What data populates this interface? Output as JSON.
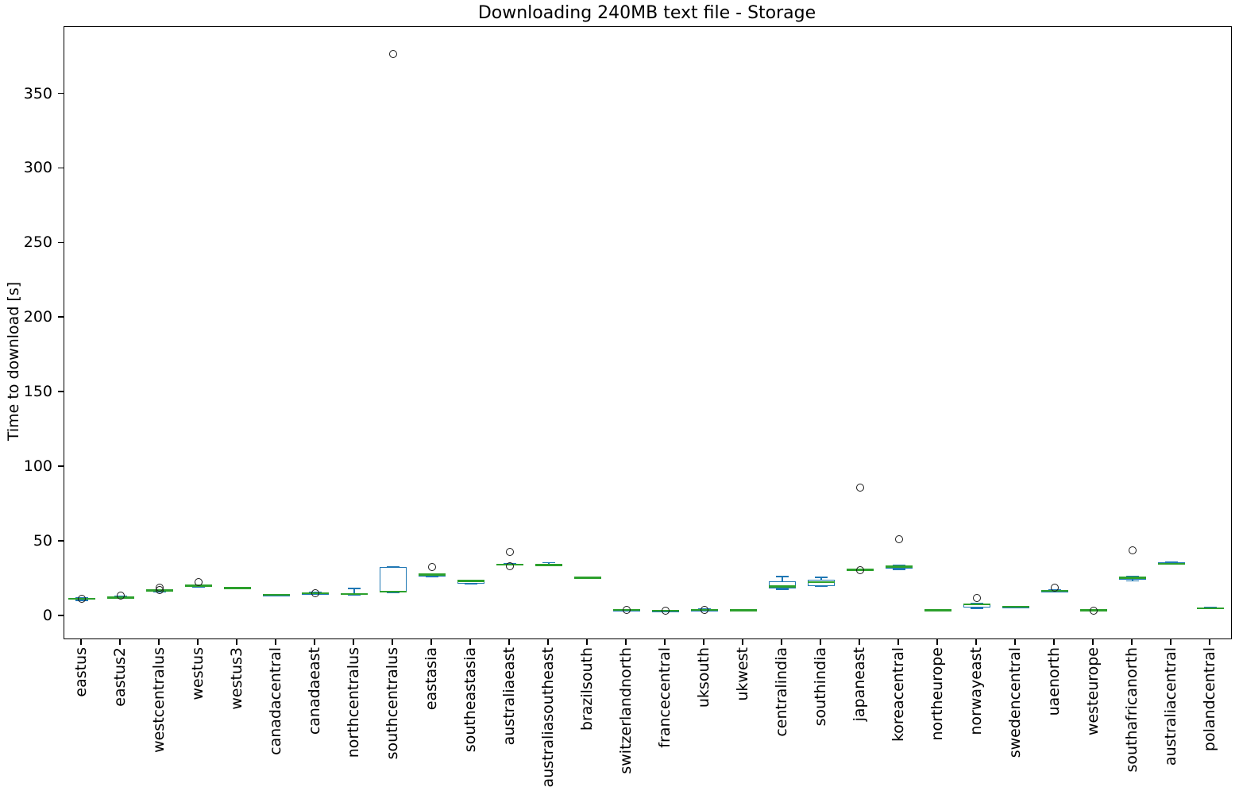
{
  "figure": {
    "title": "Downloading 240MB text file - Storage"
  },
  "chart_data": {
    "type": "box",
    "title": "Downloading 240MB text file - Storage",
    "xlabel": "",
    "ylabel": "Time to download [s]",
    "ylim": [
      -15,
      395
    ],
    "yticks": [
      0,
      50,
      100,
      150,
      200,
      250,
      300,
      350
    ],
    "grid": false,
    "legend": "none",
    "colors": {
      "box_edge": "#1f77b4",
      "median": "#2ca02c",
      "flier_edge": "#1a1a1a",
      "axis": "#000000",
      "background": "#ffffff"
    },
    "categories": [
      "eastus",
      "eastus2",
      "westcentralus",
      "westus",
      "westus3",
      "canadacentral",
      "canadaeast",
      "northcentralus",
      "southcentralus",
      "eastasia",
      "southeastasia",
      "australiaeast",
      "australiasoutheast",
      "brazilsouth",
      "switzerlandnorth",
      "francecentral",
      "uksouth",
      "ukwest",
      "centralindia",
      "southindia",
      "japaneast",
      "koreacentral",
      "northeurope",
      "norwayeast",
      "swedencentral",
      "uaenorth",
      "westeurope",
      "southafricanorth",
      "australiacentral",
      "polandcentral"
    ],
    "series": [
      {
        "name": "eastus",
        "whisker_low": 10.6,
        "q1": 11.1,
        "median": 11.5,
        "q3": 11.9,
        "whisker_high": 12.3,
        "outliers": [
          11.4
        ]
      },
      {
        "name": "eastus2",
        "whisker_low": 11.9,
        "q1": 12.2,
        "median": 12.5,
        "q3": 12.8,
        "whisker_high": 13.1,
        "outliers": [
          13.8
        ]
      },
      {
        "name": "westcentralus",
        "whisker_low": 16.4,
        "q1": 16.8,
        "median": 17.1,
        "q3": 17.4,
        "whisker_high": 17.8,
        "outliers": [
          17.3,
          19.0
        ]
      },
      {
        "name": "westus",
        "whisker_low": 19.7,
        "q1": 20.0,
        "median": 20.3,
        "q3": 20.6,
        "whisker_high": 20.9,
        "outliers": [
          23.0
        ]
      },
      {
        "name": "westus3",
        "whisker_low": 18.3,
        "q1": 18.6,
        "median": 18.8,
        "q3": 19.1,
        "whisker_high": 19.4,
        "outliers": []
      },
      {
        "name": "canadacentral",
        "whisker_low": 13.9,
        "q1": 14.1,
        "median": 14.2,
        "q3": 14.4,
        "whisker_high": 14.6,
        "outliers": []
      },
      {
        "name": "canadaeast",
        "whisker_low": 15.1,
        "q1": 15.3,
        "median": 15.4,
        "q3": 15.6,
        "whisker_high": 15.8,
        "outliers": [
          15.4
        ]
      },
      {
        "name": "northcentralus",
        "whisker_low": 14.0,
        "q1": 14.4,
        "median": 14.7,
        "q3": 15.1,
        "whisker_high": 18.6,
        "outliers": []
      },
      {
        "name": "southcentralus",
        "whisker_low": 15.8,
        "q1": 16.0,
        "median": 16.4,
        "q3": 32.8,
        "whisker_high": 33.0,
        "outliers": [
          377.0
        ]
      },
      {
        "name": "eastasia",
        "whisker_low": 26.2,
        "q1": 26.5,
        "median": 27.8,
        "q3": 28.1,
        "whisker_high": 28.4,
        "outliers": [
          33.1
        ]
      },
      {
        "name": "southeastasia",
        "whisker_low": 21.5,
        "q1": 21.8,
        "median": 23.5,
        "q3": 23.9,
        "whisker_high": 24.2,
        "outliers": []
      },
      {
        "name": "australiaeast",
        "whisker_low": 34.2,
        "q1": 34.4,
        "median": 34.6,
        "q3": 34.9,
        "whisker_high": 35.1,
        "outliers": [
          33.7,
          43.1
        ]
      },
      {
        "name": "australiasoutheast",
        "whisker_low": 33.8,
        "q1": 34.0,
        "median": 34.3,
        "q3": 35.2,
        "whisker_high": 35.8,
        "outliers": []
      },
      {
        "name": "brazilsouth",
        "whisker_low": 25.4,
        "q1": 25.6,
        "median": 25.8,
        "q3": 26.0,
        "whisker_high": 26.2,
        "outliers": []
      },
      {
        "name": "switzerlandnorth",
        "whisker_low": 3.8,
        "q1": 4.0,
        "median": 4.1,
        "q3": 4.3,
        "whisker_high": 4.5,
        "outliers": [
          4.1
        ]
      },
      {
        "name": "francecentral",
        "whisker_low": 3.3,
        "q1": 3.5,
        "median": 3.6,
        "q3": 3.8,
        "whisker_high": 4.0,
        "outliers": [
          3.6
        ]
      },
      {
        "name": "uksouth",
        "whisker_low": 3.9,
        "q1": 4.1,
        "median": 4.2,
        "q3": 4.4,
        "whisker_high": 4.6,
        "outliers": [
          4.2
        ]
      },
      {
        "name": "ukwest",
        "whisker_low": 3.7,
        "q1": 3.9,
        "median": 4.0,
        "q3": 4.2,
        "whisker_high": 4.4,
        "outliers": []
      },
      {
        "name": "centralindia",
        "whisker_low": 18.0,
        "q1": 18.3,
        "median": 19.9,
        "q3": 23.2,
        "whisker_high": 26.6,
        "outliers": []
      },
      {
        "name": "southindia",
        "whisker_low": 19.8,
        "q1": 20.4,
        "median": 22.7,
        "q3": 24.3,
        "whisker_high": 26.1,
        "outliers": []
      },
      {
        "name": "japaneast",
        "whisker_low": 30.6,
        "q1": 30.8,
        "median": 31.1,
        "q3": 31.4,
        "whisker_high": 31.6,
        "outliers": [
          30.9,
          86.0
        ]
      },
      {
        "name": "koreacentral",
        "whisker_low": 31.2,
        "q1": 31.9,
        "median": 33.3,
        "q3": 33.8,
        "whisker_high": 34.1,
        "outliers": [
          51.5
        ]
      },
      {
        "name": "northeurope",
        "whisker_low": 3.6,
        "q1": 3.8,
        "median": 3.9,
        "q3": 4.1,
        "whisker_high": 4.3,
        "outliers": []
      },
      {
        "name": "norwayeast",
        "whisker_low": 5.3,
        "q1": 5.7,
        "median": 8.0,
        "q3": 8.4,
        "whisker_high": 8.8,
        "outliers": [
          11.9
        ]
      },
      {
        "name": "swedencentral",
        "whisker_low": 5.9,
        "q1": 6.1,
        "median": 6.2,
        "q3": 6.4,
        "whisker_high": 6.6,
        "outliers": []
      },
      {
        "name": "uaenorth",
        "whisker_low": 16.5,
        "q1": 16.7,
        "median": 16.9,
        "q3": 17.2,
        "whisker_high": 17.5,
        "outliers": [
          19.2
        ]
      },
      {
        "name": "westeurope",
        "whisker_low": 3.6,
        "q1": 3.8,
        "median": 3.9,
        "q3": 4.1,
        "whisker_high": 4.3,
        "outliers": [
          3.7
        ]
      },
      {
        "name": "southafricanorth",
        "whisker_low": 23.6,
        "q1": 24.6,
        "median": 25.7,
        "q3": 26.3,
        "whisker_high": 26.7,
        "outliers": [
          44.0
        ]
      },
      {
        "name": "australiacentral",
        "whisker_low": 34.7,
        "q1": 34.9,
        "median": 35.1,
        "q3": 36.2,
        "whisker_high": 36.5,
        "outliers": []
      },
      {
        "name": "polandcentral",
        "whisker_low": 4.9,
        "q1": 5.1,
        "median": 5.2,
        "q3": 5.6,
        "whisker_high": 5.8,
        "outliers": []
      }
    ]
  }
}
